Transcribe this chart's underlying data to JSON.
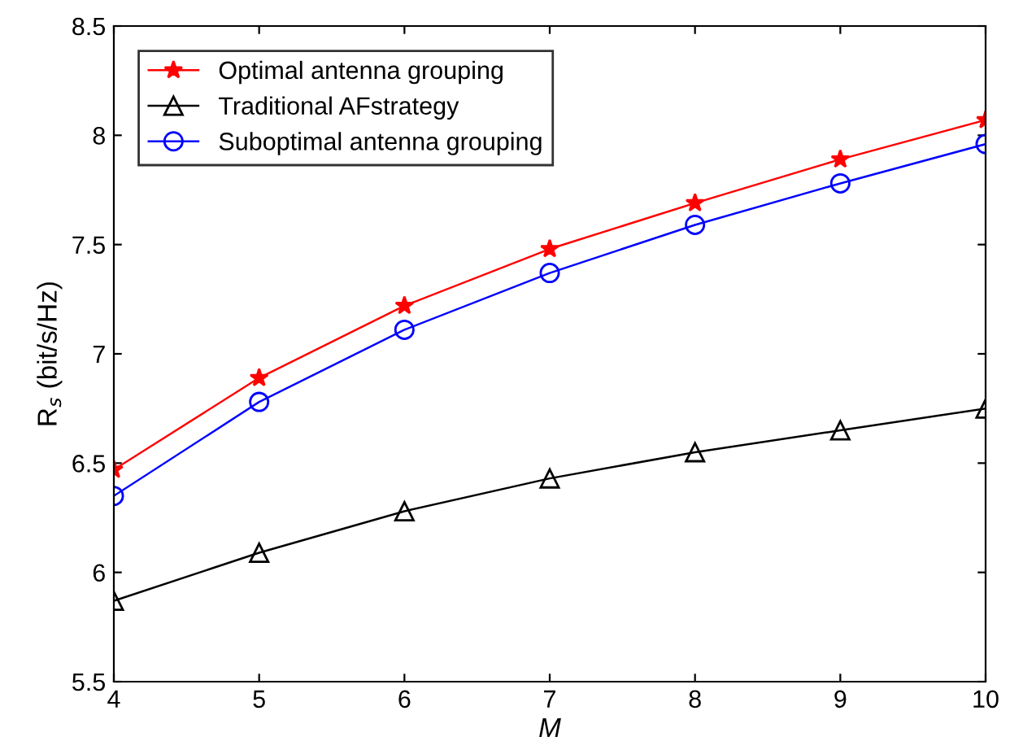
{
  "chart_data": {
    "type": "line",
    "xlabel": "M",
    "ylabel": "R$_{s}$ (bit/s/Hz)",
    "x": [
      4,
      5,
      6,
      7,
      8,
      9,
      10
    ],
    "series": [
      {
        "name": "Optimal antenna grouping",
        "color": "#ff0000",
        "marker": "star",
        "values": [
          6.47,
          6.89,
          7.22,
          7.48,
          7.69,
          7.89,
          8.07
        ]
      },
      {
        "name": "Traditional AFstrategy",
        "color": "#000000",
        "marker": "triangle",
        "values": [
          5.87,
          6.09,
          6.28,
          6.43,
          6.55,
          6.65,
          6.75
        ]
      },
      {
        "name": "Suboptimal antenna grouping",
        "color": "#0000ff",
        "marker": "circle",
        "values": [
          6.35,
          6.78,
          7.11,
          7.37,
          7.59,
          7.78,
          7.96
        ]
      }
    ],
    "xlim": [
      4,
      10
    ],
    "xticks": [
      4,
      5,
      6,
      7,
      8,
      9,
      10
    ],
    "ylim": [
      5.5,
      8.5
    ],
    "yticks": [
      5.5,
      6,
      6.5,
      7,
      7.5,
      8,
      8.5
    ],
    "legend": "top left",
    "grid": false,
    "line_style": "solid"
  }
}
